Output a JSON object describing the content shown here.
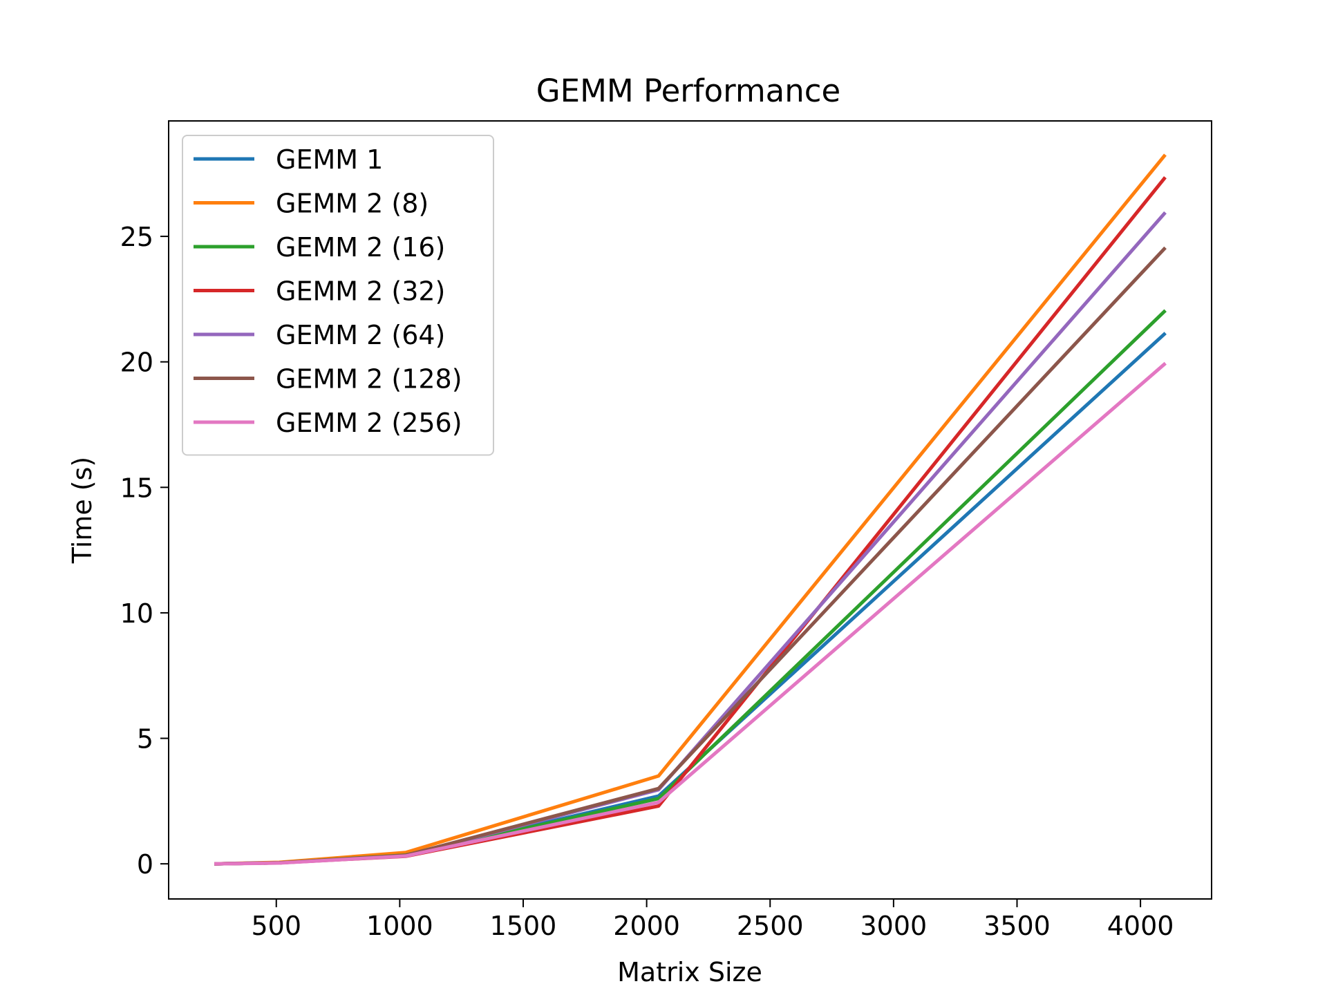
{
  "chart_data": {
    "type": "line",
    "title": "GEMM Performance",
    "xlabel": "Matrix Size",
    "ylabel": "Time (s)",
    "x": [
      256,
      512,
      1024,
      2048,
      4096
    ],
    "xlim": [
      64,
      4288
    ],
    "ylim": [
      -1.4,
      29.6
    ],
    "xticks": [
      500,
      1000,
      1500,
      2000,
      2500,
      3000,
      3500,
      4000
    ],
    "yticks": [
      0,
      5,
      10,
      15,
      20,
      25
    ],
    "grid": false,
    "legend_position": "upper-left",
    "series": [
      {
        "name": "GEMM 1",
        "color": "#1f77b4",
        "values": [
          0.0,
          0.04,
          0.33,
          2.7,
          21.1
        ]
      },
      {
        "name": "GEMM 2 (8)",
        "color": "#ff7f0e",
        "values": [
          0.0,
          0.06,
          0.45,
          3.5,
          28.2
        ]
      },
      {
        "name": "GEMM 2 (16)",
        "color": "#2ca02c",
        "values": [
          0.0,
          0.04,
          0.35,
          2.6,
          22.0
        ]
      },
      {
        "name": "GEMM 2 (32)",
        "color": "#d62728",
        "values": [
          0.0,
          0.04,
          0.3,
          2.3,
          27.3
        ]
      },
      {
        "name": "GEMM 2 (64)",
        "color": "#9467bd",
        "values": [
          0.0,
          0.04,
          0.32,
          2.95,
          25.9
        ]
      },
      {
        "name": "GEMM 2 (128)",
        "color": "#8c564b",
        "values": [
          0.0,
          0.04,
          0.34,
          3.0,
          24.5
        ]
      },
      {
        "name": "GEMM 2 (256)",
        "color": "#e377c2",
        "values": [
          0.0,
          0.03,
          0.31,
          2.45,
          19.9
        ]
      }
    ]
  }
}
